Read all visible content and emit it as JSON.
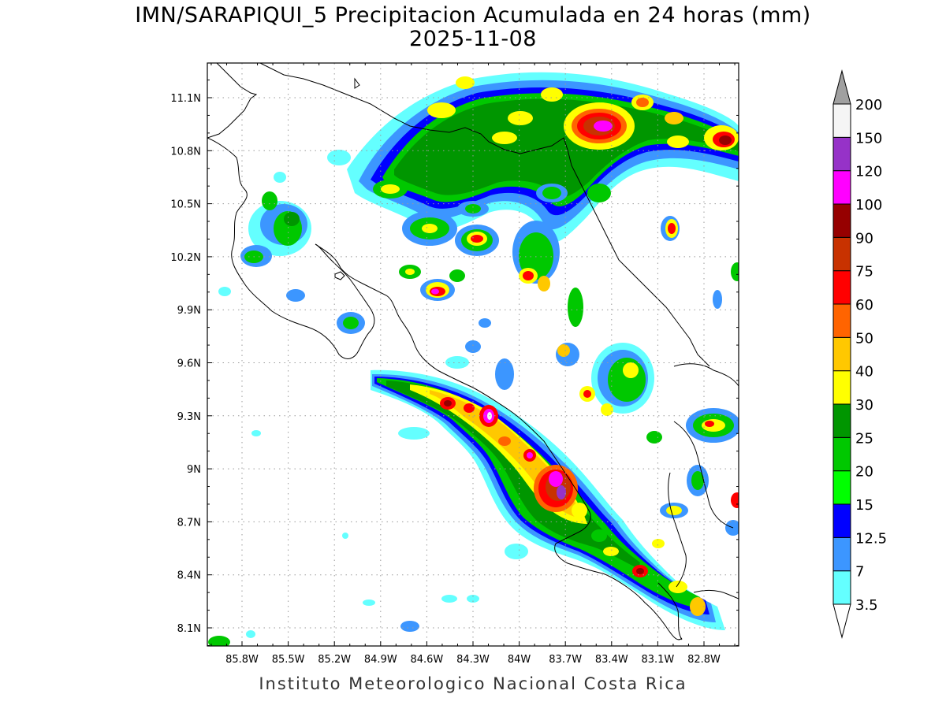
{
  "title": "IMN/SARAPIQUI_5 Precipitacion Acumulada en 24 horas (mm)",
  "date": "2025-11-08",
  "footer": "Instituto Meteorologico Nacional Costa Rica",
  "lon_labels": [
    "85.8W",
    "85.5W",
    "85.2W",
    "84.9W",
    "84.6W",
    "84.3W",
    "84W",
    "83.7W",
    "83.4W",
    "83.1W",
    "82.8W"
  ],
  "lat_labels": [
    "11.1N",
    "10.8N",
    "10.5N",
    "10.2N",
    "9.9N",
    "9.6N",
    "9.3N",
    "9N",
    "8.7N",
    "8.4N",
    "8.1N"
  ],
  "colorbar": {
    "levels": [
      "3.5",
      "7",
      "12.5",
      "15",
      "20",
      "25",
      "30",
      "40",
      "50",
      "60",
      "75",
      "90",
      "100",
      "120",
      "150",
      "200"
    ],
    "colors": [
      "#64ffff",
      "#3c96ff",
      "#0000ff",
      "#00ff00",
      "#00c800",
      "#009600",
      "#ffff00",
      "#ffc800",
      "#ff6400",
      "#ff0000",
      "#c83200",
      "#960000",
      "#ff00ff",
      "#9632c8",
      "#f5f5f5",
      "#a0a0a0"
    ]
  }
}
